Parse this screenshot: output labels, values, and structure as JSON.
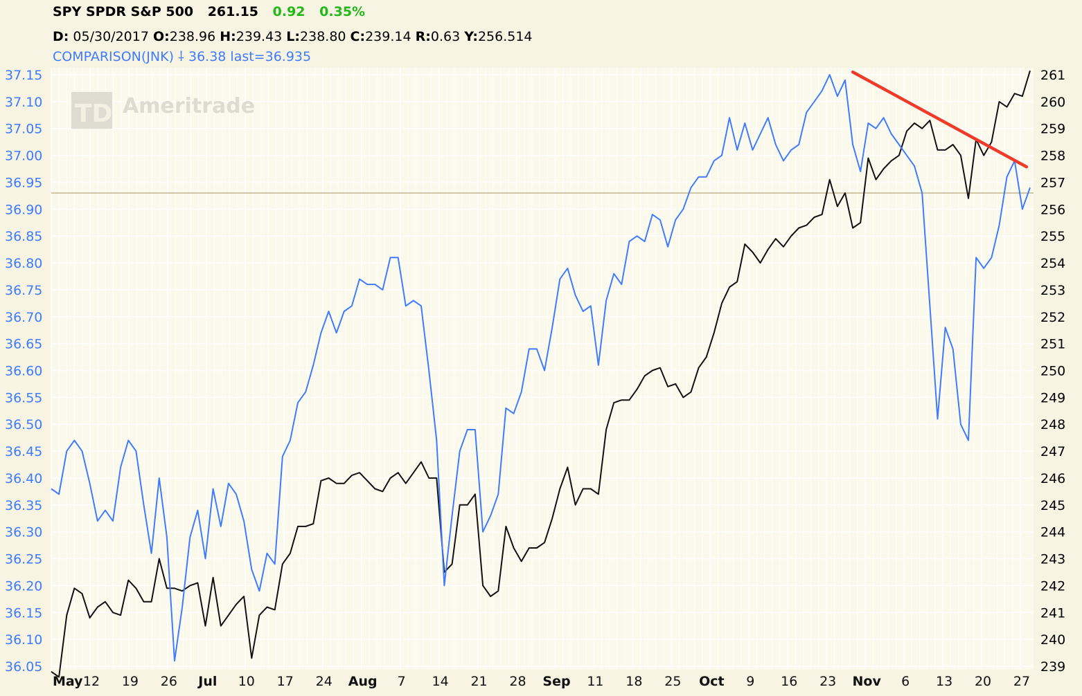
{
  "header": {
    "symbol": "SPY SPDR S&P 500",
    "last": "261.15",
    "change": "0.92",
    "change_pct": "0.35%",
    "d_label": "D:",
    "d_value": "05/30/2017",
    "o_label": "O:",
    "o_value": "238.96",
    "h_label": "H:",
    "h_value": "239.43",
    "l_label": "L:",
    "l_value": "238.80",
    "c_label": "C:",
    "c_value": "239.14",
    "r_label": "R:",
    "r_value": "0.63",
    "y_label": "Y:",
    "y_value": "256.514",
    "comparison": "COMPARISON(JNK) ⸸ 36.38 last=36.935"
  },
  "watermark": "Ameritrade",
  "colors": {
    "background": "#f7f4e3",
    "plot_background": "#fbf9ec",
    "grid": "#ffffff",
    "spy_line": "#111111",
    "jnk_line": "#3f7bff",
    "trendline": "#f03a2a",
    "reference_line": "#b3a87a",
    "up_text": "#22b818",
    "left_axis_text": "#3f7bff",
    "right_axis_text": "#000000"
  },
  "chart_data": {
    "type": "line",
    "x_labels": [
      "May",
      "12",
      "19",
      "26",
      "Jul",
      "10",
      "17",
      "24",
      "Aug",
      "7",
      "14",
      "21",
      "28",
      "Sep",
      "11",
      "18",
      "25",
      "Oct",
      "9",
      "16",
      "23",
      "Nov",
      "6",
      "13",
      "20",
      "27"
    ],
    "x_labels_bold": [
      "May",
      "Jul",
      "Aug",
      "Sep",
      "Oct",
      "Nov"
    ],
    "left_axis": {
      "ticks": [
        "37.15",
        "37.10",
        "37.05",
        "37.00",
        "36.95",
        "36.90",
        "36.85",
        "36.80",
        "36.75",
        "36.70",
        "36.65",
        "36.60",
        "36.55",
        "36.50",
        "36.45",
        "36.40",
        "36.35",
        "36.30",
        "36.25",
        "36.20",
        "36.15",
        "36.10",
        "36.05"
      ],
      "range": [
        36.05,
        37.15
      ]
    },
    "right_axis": {
      "ticks": [
        "261",
        "260",
        "259",
        "258",
        "257",
        "256",
        "255",
        "254",
        "253",
        "252",
        "251",
        "250",
        "249",
        "248",
        "247",
        "246",
        "245",
        "244",
        "243",
        "242",
        "241",
        "240",
        "239"
      ],
      "range": [
        239,
        261
      ]
    },
    "reference_value_left": 36.93,
    "series": [
      {
        "name": "SPY SPDR S&P 500",
        "axis": "right",
        "values": [
          238.8,
          238.6,
          240.9,
          241.9,
          241.7,
          240.8,
          241.2,
          241.4,
          241.0,
          240.9,
          242.2,
          241.9,
          241.4,
          241.4,
          243.0,
          241.9,
          241.9,
          241.8,
          242.0,
          242.1,
          240.5,
          242.3,
          240.5,
          240.9,
          241.3,
          241.6,
          239.3,
          240.9,
          241.2,
          241.1,
          242.8,
          243.2,
          244.2,
          244.2,
          244.3,
          245.9,
          246.0,
          245.8,
          245.8,
          246.1,
          246.2,
          245.9,
          245.6,
          245.5,
          246.0,
          246.2,
          245.8,
          246.2,
          246.6,
          246.0,
          246.0,
          242.5,
          242.8,
          245.0,
          245.0,
          245.4,
          242.0,
          241.6,
          241.8,
          244.2,
          243.4,
          242.9,
          243.4,
          243.4,
          243.6,
          244.5,
          245.6,
          246.4,
          245.0,
          245.6,
          245.6,
          245.4,
          247.8,
          248.8,
          248.9,
          248.9,
          249.3,
          249.8,
          250.0,
          250.1,
          249.4,
          249.5,
          249.0,
          249.2,
          250.1,
          250.5,
          251.4,
          252.5,
          253.1,
          253.3,
          254.7,
          254.4,
          254.0,
          254.5,
          254.9,
          254.6,
          255.0,
          255.3,
          255.4,
          255.7,
          255.8,
          257.1,
          256.1,
          256.6,
          255.3,
          255.5,
          257.9,
          257.1,
          257.5,
          257.8,
          258.0,
          258.9,
          259.2,
          259.0,
          259.3,
          258.2,
          258.2,
          258.4,
          258.0,
          256.4,
          258.6,
          258.0,
          258.5,
          260.0,
          259.8,
          260.3,
          260.2,
          261.15
        ]
      },
      {
        "name": "COMPARISON(JNK)",
        "axis": "left",
        "values": [
          36.38,
          36.37,
          36.45,
          36.47,
          36.45,
          36.39,
          36.32,
          36.34,
          36.32,
          36.42,
          36.47,
          36.45,
          36.35,
          36.26,
          36.4,
          36.29,
          36.06,
          36.16,
          36.29,
          36.34,
          36.25,
          36.38,
          36.31,
          36.39,
          36.37,
          36.32,
          36.23,
          36.19,
          36.26,
          36.24,
          36.44,
          36.47,
          36.54,
          36.56,
          36.61,
          36.67,
          36.71,
          36.67,
          36.71,
          36.72,
          36.77,
          36.76,
          36.76,
          36.75,
          36.81,
          36.81,
          36.72,
          36.73,
          36.72,
          36.6,
          36.47,
          36.2,
          36.33,
          36.45,
          36.49,
          36.49,
          36.3,
          36.33,
          36.37,
          36.53,
          36.52,
          36.56,
          36.64,
          36.64,
          36.6,
          36.68,
          36.77,
          36.79,
          36.74,
          36.71,
          36.72,
          36.61,
          36.73,
          36.78,
          36.76,
          36.84,
          36.85,
          36.84,
          36.89,
          36.88,
          36.83,
          36.88,
          36.9,
          36.94,
          36.96,
          36.96,
          36.99,
          37.0,
          37.07,
          37.01,
          37.06,
          37.01,
          37.04,
          37.07,
          37.02,
          36.99,
          37.01,
          37.02,
          37.08,
          37.1,
          37.12,
          37.15,
          37.11,
          37.14,
          37.02,
          36.97,
          37.06,
          37.05,
          37.07,
          37.04,
          37.02,
          37.0,
          36.98,
          36.93,
          36.72,
          36.51,
          36.68,
          36.64,
          36.5,
          36.47,
          36.81,
          36.79,
          36.81,
          36.87,
          36.96,
          36.99,
          36.9,
          36.94
        ]
      }
    ],
    "trendline": {
      "axis": "right",
      "from": {
        "index": 104,
        "value": 261.1
      },
      "to": {
        "index": 126,
        "value": 257.6
      }
    }
  }
}
